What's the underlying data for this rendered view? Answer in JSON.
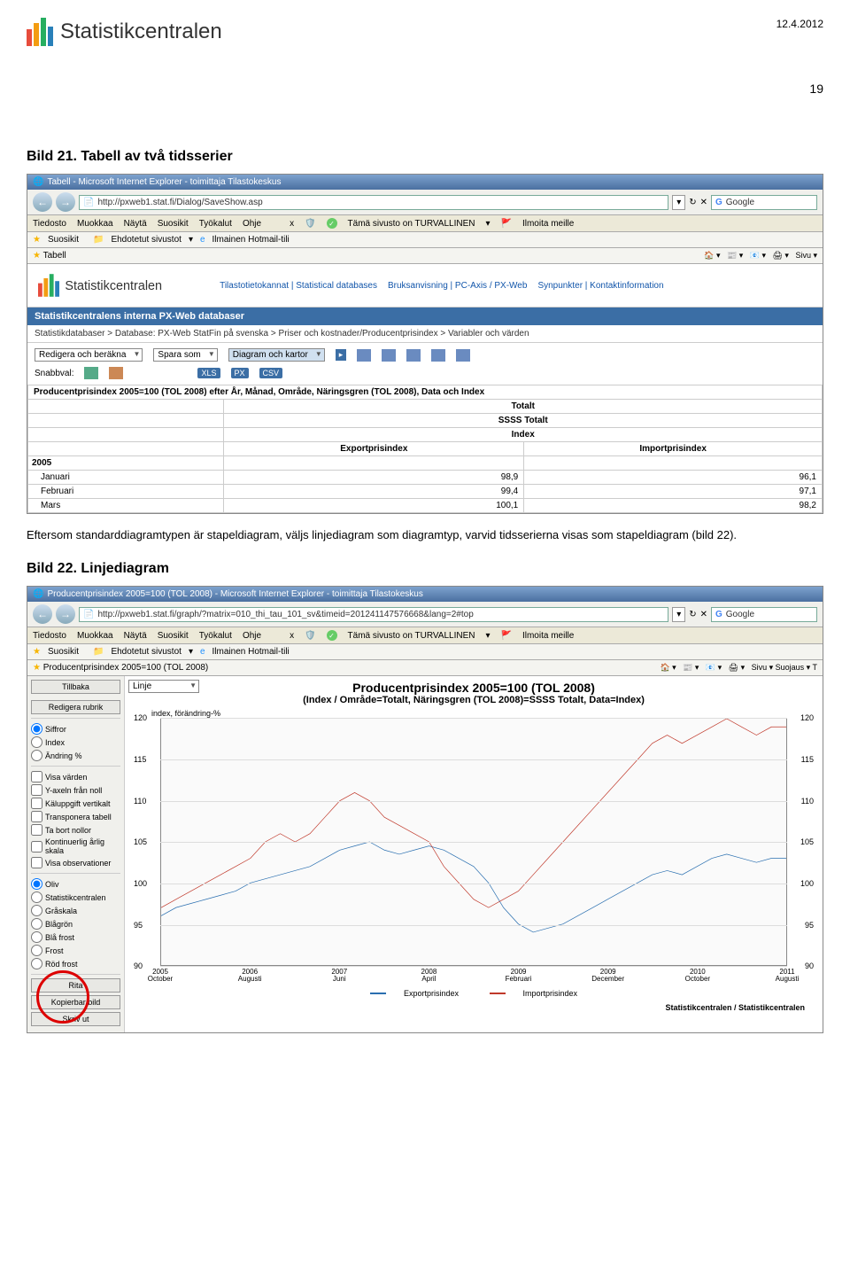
{
  "page": {
    "date": "12.4.2012",
    "number": "19",
    "brand": "Statistikcentralen"
  },
  "section1": {
    "heading": "Bild 21. Tabell av två tidsserier",
    "body": "Eftersom standarddiagramtypen är stapeldiagram, väljs linjediagram som diagramtyp, varvid tidsserierna visas som stapeldiagram (bild 22)."
  },
  "section2": {
    "heading": "Bild 22. Linjediagram"
  },
  "browser1": {
    "title": "Tabell - Microsoft Internet Explorer - toimittaja Tilastokeskus",
    "url": "http://pxweb1.stat.fi/Dialog/SaveShow.asp",
    "search": "Google",
    "menus": [
      "Tiedosto",
      "Muokkaa",
      "Näytä",
      "Suosikit",
      "Työkalut",
      "Ohje"
    ],
    "safety": "Tämä sivusto on TURVALLINEN",
    "report": "Ilmoita meille",
    "fav_label": "Suosikit",
    "fav_items": [
      "Ehdotetut sivustot",
      "Ilmainen Hotmail-tili"
    ],
    "tab": "Tabell",
    "right_menu": "Sivu",
    "sc_links": [
      "Tilastotietokannat | Statistical databases",
      "Bruksanvisning | PC-Axis / PX-Web",
      "Synpunkter | Kontaktinformation"
    ],
    "blue_band": "Statistikcentralens interna PX-Web databaser",
    "breadcrumb": "Statistikdatabaser > Database: PX-Web StatFin på svenska > Priser och kostnader/Producentprisindex > Variabler och värden",
    "ctrl_edit": "Redigera och beräkna",
    "ctrl_save": "Spara som",
    "ctrl_chart": "Diagram och kartor",
    "snabbval": "Snabbval:",
    "formats": [
      "XLS",
      "PX",
      "CSV"
    ]
  },
  "table": {
    "title": "Producentprisindex 2005=100 (TOL 2008) efter År, Månad, Område, Näringsgren (TOL 2008), Data och Index",
    "h1": "Totalt",
    "h2": "SSSS Totalt",
    "h3": "Index",
    "col1": "Exportprisindex",
    "col2": "Importprisindex",
    "year": "2005",
    "rows": [
      {
        "m": "Januari",
        "e": "98,9",
        "i": "96,1"
      },
      {
        "m": "Februari",
        "e": "99,4",
        "i": "97,1"
      },
      {
        "m": "Mars",
        "e": "100,1",
        "i": "98,2"
      }
    ]
  },
  "browser2": {
    "title": "Producentprisindex 2005=100 (TOL 2008) - Microsoft Internet Explorer - toimittaja Tilastokeskus",
    "url": "http://pxweb1.stat.fi/graph/?matrix=010_thi_tau_101_sv&timeid=201241147576668&lang=2#top",
    "tab": "Producentprisindex 2005=100 (TOL 2008)",
    "right_menu": "Sivu ▾  Suojaus ▾  T"
  },
  "sidebar": {
    "tillbaka": "Tillbaka",
    "redigera": "Redigera rubrik",
    "linje": "Linje",
    "radios1": [
      "Siffror",
      "Index",
      "Ändring %"
    ],
    "checks": [
      "Visa värden",
      "Y-axeln från noll",
      "Käluppgift vertikalt",
      "Transponera tabell",
      "Ta bort nollor",
      "Kontinuerlig årlig skala",
      "Visa observationer"
    ],
    "radios2": [
      "Oliv",
      "Statistikcentralen",
      "Gråskala",
      "Blågrön",
      "Blå frost",
      "Frost",
      "Röd frost"
    ],
    "rita": "Rita",
    "kopierbar": "Kopierbar bild",
    "skriv": "Skriv ut"
  },
  "chart": {
    "title": "Producentprisindex 2005=100 (TOL 2008)",
    "subtitle": "(Index / Område=Totalt, Näringsgren (TOL 2008)=SSSS Totalt, Data=Index)",
    "ylabel": "index, förändring-%",
    "ylim": [
      90,
      120
    ],
    "yticks": [
      90,
      95,
      100,
      105,
      110,
      115,
      120
    ],
    "xticks": [
      "2005\nOctober",
      "2006\nAugusti",
      "2007\nJuni",
      "2008\nApril",
      "2009\nFebruari",
      "2009\nDecember",
      "2010\nOctober",
      "2011\nAugusti"
    ],
    "series": [
      {
        "name": "Exportprisindex",
        "color": "#2a6fb0",
        "points": [
          96,
          97,
          97.5,
          98,
          98.5,
          99,
          100,
          100.5,
          101,
          101.5,
          102,
          103,
          104,
          104.5,
          105,
          104,
          103.5,
          104,
          104.5,
          104,
          103,
          102,
          100,
          97,
          95,
          94,
          94.5,
          95,
          96,
          97,
          98,
          99,
          100,
          101,
          101.5,
          101,
          102,
          103,
          103.5,
          103,
          102.5,
          103,
          103
        ]
      },
      {
        "name": "Importprisindex",
        "color": "#c0392b",
        "points": [
          97,
          98,
          99,
          100,
          101,
          102,
          103,
          105,
          106,
          105,
          106,
          108,
          110,
          111,
          110,
          108,
          107,
          106,
          105,
          102,
          100,
          98,
          97,
          98,
          99,
          101,
          103,
          105,
          107,
          109,
          111,
          113,
          115,
          117,
          118,
          117,
          118,
          119,
          120,
          119,
          118,
          119,
          119
        ]
      }
    ],
    "background": "#fafafa",
    "grid_color": "#dddddd",
    "credit": "Statistikcentralen / Statistikcentralen"
  },
  "logo_colors": [
    "#e74c3c",
    "#f39c12",
    "#27ae60",
    "#2980b9"
  ]
}
